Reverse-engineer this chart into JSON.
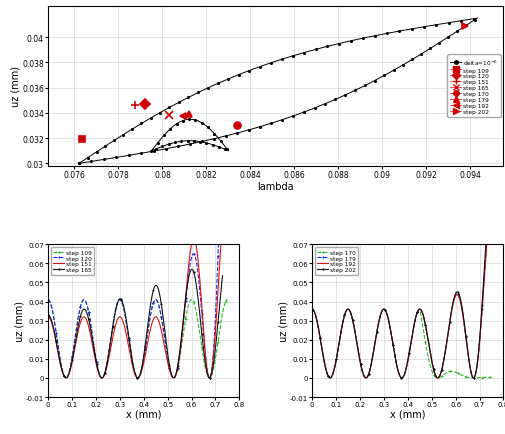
{
  "top": {
    "xlabel": "lambda",
    "ylabel": "uz (mm)",
    "xlim": [
      0.0748,
      0.0955
    ],
    "ylim": [
      0.0298,
      0.0425
    ],
    "xticks": [
      0.076,
      0.078,
      0.08,
      0.082,
      0.084,
      0.086,
      0.088,
      0.09,
      0.092,
      0.094
    ],
    "yticks": [
      0.03,
      0.032,
      0.034,
      0.036,
      0.038,
      0.04
    ],
    "red_markers": [
      {
        "step": 109,
        "marker": "s",
        "lam": 0.07635,
        "uz": 0.03195
      },
      {
        "step": 120,
        "marker": "D",
        "lam": 0.0792,
        "uz": 0.0347
      },
      {
        "step": 151,
        "marker": "+",
        "lam": 0.07875,
        "uz": 0.03465
      },
      {
        "step": 165,
        "marker": "x",
        "lam": 0.0803,
        "uz": 0.03385
      },
      {
        "step": 170,
        "marker": "o",
        "lam": 0.0834,
        "uz": 0.03305
      },
      {
        "step": 179,
        "marker": "^",
        "lam": 0.0812,
        "uz": 0.03395
      },
      {
        "step": 192,
        "marker": "<",
        "lam": 0.08095,
        "uz": 0.03375
      },
      {
        "step": 202,
        "marker": ">",
        "lam": 0.09375,
        "uz": 0.04085
      }
    ]
  },
  "bottom_left": {
    "xlabel": "x (mm)",
    "ylabel": "uz (mm)",
    "xlim": [
      0,
      0.8
    ],
    "ylim": [
      -0.01,
      0.07
    ],
    "xticks": [
      0,
      0.1,
      0.2,
      0.3,
      0.4,
      0.5,
      0.6,
      0.7,
      0.8
    ],
    "yticks": [
      -0.01,
      0,
      0.01,
      0.02,
      0.03,
      0.04,
      0.05,
      0.06,
      0.07
    ]
  },
  "bottom_right": {
    "xlabel": "x (mm)",
    "ylabel": "uz (mm)",
    "xlim": [
      0,
      0.8
    ],
    "ylim": [
      -0.01,
      0.07
    ],
    "xticks": [
      0,
      0.1,
      0.2,
      0.3,
      0.4,
      0.5,
      0.6,
      0.7,
      0.8
    ],
    "yticks": [
      -0.01,
      0,
      0.01,
      0.02,
      0.03,
      0.04,
      0.05,
      0.06,
      0.07
    ]
  },
  "colors": {
    "green": "#22bb22",
    "blue": "#2222ee",
    "red": "#dd1111",
    "black": "#111111"
  }
}
